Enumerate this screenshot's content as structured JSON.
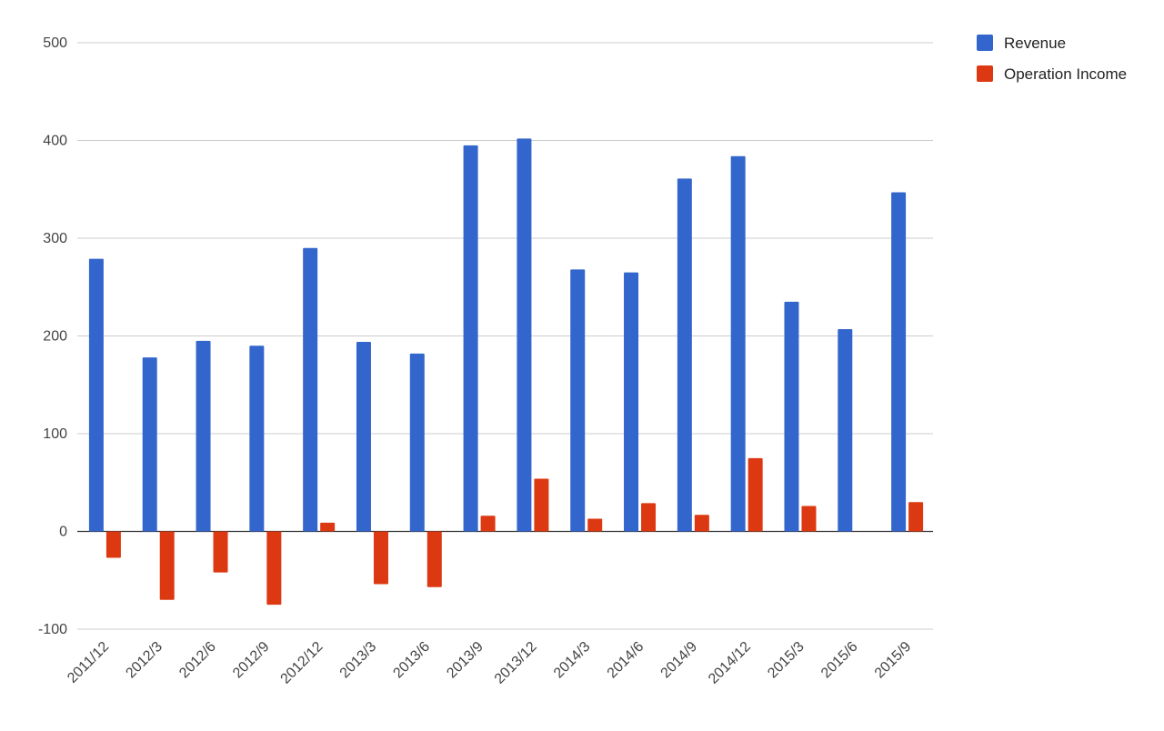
{
  "chart_data": {
    "type": "bar",
    "categories": [
      "2011/12",
      "2012/3",
      "2012/6",
      "2012/9",
      "2012/12",
      "2013/3",
      "2013/6",
      "2013/9",
      "2013/12",
      "2014/3",
      "2014/6",
      "2014/9",
      "2014/12",
      "2015/3",
      "2015/6",
      "2015/9"
    ],
    "series": [
      {
        "name": "Revenue",
        "color": "#3366cc",
        "values": [
          279,
          178,
          195,
          190,
          290,
          194,
          182,
          395,
          402,
          268,
          265,
          361,
          384,
          235,
          207,
          347
        ]
      },
      {
        "name": "Operation Income",
        "color": "#dc3912",
        "values": [
          -27,
          -70,
          -42,
          -75,
          9,
          -54,
          -57,
          16,
          54,
          13,
          29,
          17,
          75,
          26,
          null,
          30
        ]
      }
    ],
    "ylim": [
      -100,
      500
    ],
    "yticks": [
      -100,
      0,
      100,
      200,
      300,
      400,
      500
    ],
    "title": "",
    "xlabel": "",
    "ylabel": "",
    "grid": true,
    "legend_position": "top-right"
  }
}
